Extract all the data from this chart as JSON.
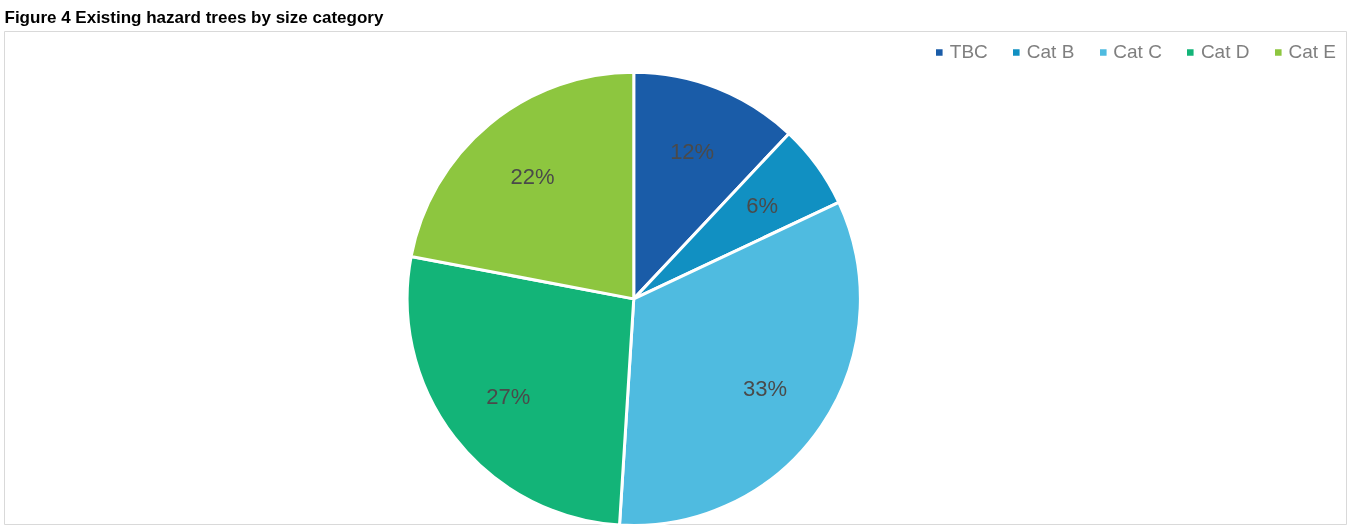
{
  "chart_data": {
    "type": "pie",
    "title": "Figure 4 Existing hazard trees by size category",
    "categories": [
      "TBC",
      "Cat B",
      "Cat C",
      "Cat D",
      "Cat E"
    ],
    "values": [
      12,
      6,
      33,
      27,
      22
    ],
    "colors": [
      "#1a5ca8",
      "#1190c2",
      "#4fbbe0",
      "#13b478",
      "#8dc63f"
    ],
    "value_labels": [
      "12%",
      "6%",
      "33%",
      "27%",
      "22%"
    ],
    "legend": "top right"
  }
}
